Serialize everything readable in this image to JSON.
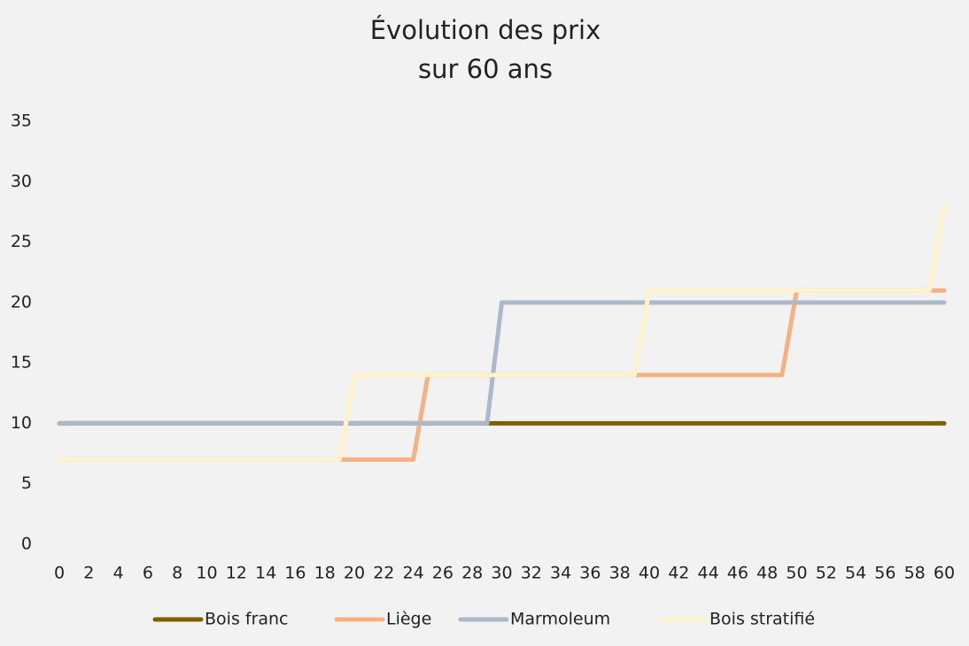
{
  "chart_data": {
    "type": "line",
    "title_lines": [
      "Évolution des prix",
      "sur 60 ans"
    ],
    "x": [
      0,
      1,
      2,
      3,
      4,
      5,
      6,
      7,
      8,
      9,
      10,
      11,
      12,
      13,
      14,
      15,
      16,
      17,
      18,
      19,
      20,
      21,
      22,
      23,
      24,
      25,
      26,
      27,
      28,
      29,
      30,
      31,
      32,
      33,
      34,
      35,
      36,
      37,
      38,
      39,
      40,
      41,
      42,
      43,
      44,
      45,
      46,
      47,
      48,
      49,
      50,
      51,
      52,
      53,
      54,
      55,
      56,
      57,
      58,
      59,
      60
    ],
    "xlim": [
      0,
      60
    ],
    "xticks": [
      0,
      2,
      4,
      6,
      8,
      10,
      12,
      14,
      16,
      18,
      20,
      22,
      24,
      26,
      28,
      30,
      32,
      34,
      36,
      38,
      40,
      42,
      44,
      46,
      48,
      50,
      52,
      54,
      56,
      58,
      60
    ],
    "ylim": [
      0,
      35
    ],
    "yticks": [
      0,
      5,
      10,
      15,
      20,
      25,
      30,
      35
    ],
    "grid": false,
    "legend": "bottom",
    "series": [
      {
        "name": "Bois franc",
        "color": "#7f6000",
        "values": [
          10,
          10,
          10,
          10,
          10,
          10,
          10,
          10,
          10,
          10,
          10,
          10,
          10,
          10,
          10,
          10,
          10,
          10,
          10,
          10,
          10,
          10,
          10,
          10,
          10,
          10,
          10,
          10,
          10,
          10,
          10,
          10,
          10,
          10,
          10,
          10,
          10,
          10,
          10,
          10,
          10,
          10,
          10,
          10,
          10,
          10,
          10,
          10,
          10,
          10,
          10,
          10,
          10,
          10,
          10,
          10,
          10,
          10,
          10,
          10,
          10
        ]
      },
      {
        "name": "Liège",
        "color": "#f4b183",
        "values": [
          7,
          7,
          7,
          7,
          7,
          7,
          7,
          7,
          7,
          7,
          7,
          7,
          7,
          7,
          7,
          7,
          7,
          7,
          7,
          7,
          7,
          7,
          7,
          7,
          7,
          14,
          14,
          14,
          14,
          14,
          14,
          14,
          14,
          14,
          14,
          14,
          14,
          14,
          14,
          14,
          14,
          14,
          14,
          14,
          14,
          14,
          14,
          14,
          14,
          14,
          21,
          21,
          21,
          21,
          21,
          21,
          21,
          21,
          21,
          21,
          21
        ]
      },
      {
        "name": "Marmoleum",
        "color": "#adb9ca",
        "values": [
          10,
          10,
          10,
          10,
          10,
          10,
          10,
          10,
          10,
          10,
          10,
          10,
          10,
          10,
          10,
          10,
          10,
          10,
          10,
          10,
          10,
          10,
          10,
          10,
          10,
          10,
          10,
          10,
          10,
          10,
          20,
          20,
          20,
          20,
          20,
          20,
          20,
          20,
          20,
          20,
          20,
          20,
          20,
          20,
          20,
          20,
          20,
          20,
          20,
          20,
          20,
          20,
          20,
          20,
          20,
          20,
          20,
          20,
          20,
          20,
          20
        ]
      },
      {
        "name": "Bois stratifié",
        "color": "#fff2cc",
        "values": [
          7,
          7,
          7,
          7,
          7,
          7,
          7,
          7,
          7,
          7,
          7,
          7,
          7,
          7,
          7,
          7,
          7,
          7,
          7,
          7,
          14,
          14,
          14,
          14,
          14,
          14,
          14,
          14,
          14,
          14,
          14,
          14,
          14,
          14,
          14,
          14,
          14,
          14,
          14,
          14,
          21,
          21,
          21,
          21,
          21,
          21,
          21,
          21,
          21,
          21,
          21,
          21,
          21,
          21,
          21,
          21,
          21,
          21,
          21,
          21,
          28
        ]
      }
    ]
  }
}
